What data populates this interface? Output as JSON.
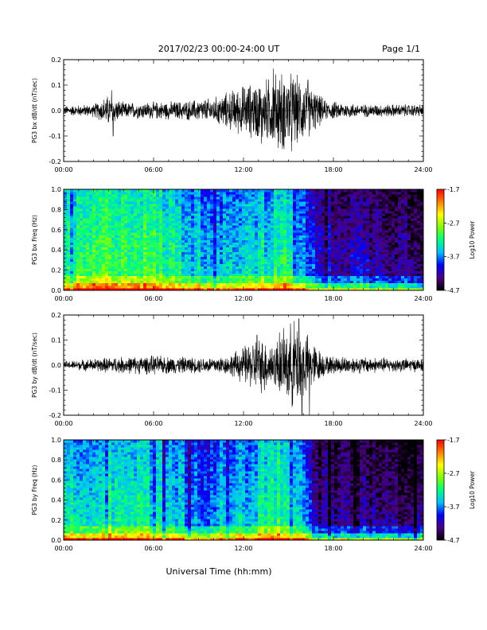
{
  "header": {
    "title": "2017/02/23  00:00-24:00 UT",
    "page": "Page 1/1"
  },
  "footer": {
    "xlabel": "Universal Time (hh:mm)"
  },
  "colorscale": [
    "#000000",
    "#4b0082",
    "#0000ff",
    "#00bfff",
    "#00ff7f",
    "#7fff00",
    "#ffff00",
    "#ff7f00",
    "#ff0000"
  ],
  "chart_data": [
    {
      "type": "line",
      "ylabel": "PG3 bx dB/dt (nT/sec)",
      "x_range": [
        0,
        24
      ],
      "x_ticks": [
        "00:00",
        "06:00",
        "12:00",
        "18:00",
        "24:00"
      ],
      "ylim": [
        -0.2,
        0.2
      ],
      "y_ticks": [
        "0.2",
        "0.1",
        "0.0",
        "-0.1",
        "-0.2"
      ],
      "envelope": [
        {
          "t": 0,
          "amp": 0.015
        },
        {
          "t": 2,
          "amp": 0.02
        },
        {
          "t": 3,
          "amp": 0.05
        },
        {
          "t": 4,
          "amp": 0.025
        },
        {
          "t": 8,
          "amp": 0.03
        },
        {
          "t": 10,
          "amp": 0.04
        },
        {
          "t": 12,
          "amp": 0.08
        },
        {
          "t": 13.5,
          "amp": 0.1
        },
        {
          "t": 14.5,
          "amp": 0.13
        },
        {
          "t": 16,
          "amp": 0.1
        },
        {
          "t": 17.5,
          "amp": 0.03
        },
        {
          "t": 20,
          "amp": 0.02
        },
        {
          "t": 24,
          "amp": 0.02
        }
      ],
      "peaks": [
        {
          "t": 3.2,
          "v": 0.08
        },
        {
          "t": 3.3,
          "v": -0.1
        },
        {
          "t": 14.0,
          "v": 0.165
        },
        {
          "t": 14.6,
          "v": -0.15
        },
        {
          "t": 13.2,
          "v": -0.13
        },
        {
          "t": 16.3,
          "v": 0.12
        },
        {
          "t": 15.2,
          "v": -0.16
        }
      ]
    },
    {
      "type": "heatmap",
      "ylabel": "PG3 bx Freq (Hz)",
      "x_range": [
        0,
        24
      ],
      "x_ticks": [
        "00:00",
        "06:00",
        "12:00",
        "18:00",
        "24:00"
      ],
      "ylim": [
        0,
        1.0
      ],
      "y_ticks": [
        "1.0",
        "0.8",
        "0.6",
        "0.4",
        "0.2",
        "0.0"
      ],
      "colorbar": {
        "label": "Log10 Power",
        "min": -4.7,
        "max": -1.7,
        "ticks": [
          "-1.7",
          "-2.7",
          "-3.7",
          "-4.7"
        ]
      },
      "profile": [
        {
          "t": 0,
          "level": -3.2
        },
        {
          "t": 3,
          "level": -2.9
        },
        {
          "t": 6,
          "level": -3.0
        },
        {
          "t": 9,
          "level": -3.4
        },
        {
          "t": 12,
          "level": -3.3
        },
        {
          "t": 15,
          "level": -3.1
        },
        {
          "t": 17,
          "level": -4.0
        },
        {
          "t": 24,
          "level": -4.2
        }
      ]
    },
    {
      "type": "line",
      "ylabel": "PG3 by dB/dt (nT/sec)",
      "x_range": [
        0,
        24
      ],
      "x_ticks": [
        "00:00",
        "06:00",
        "12:00",
        "18:00",
        "24:00"
      ],
      "ylim": [
        -0.2,
        0.2
      ],
      "y_ticks": [
        "0.2",
        "0.1",
        "0.0",
        "-0.1",
        "-0.2"
      ],
      "envelope": [
        {
          "t": 0,
          "amp": 0.012
        },
        {
          "t": 3,
          "amp": 0.025
        },
        {
          "t": 6,
          "amp": 0.03
        },
        {
          "t": 9,
          "amp": 0.025
        },
        {
          "t": 11,
          "amp": 0.03
        },
        {
          "t": 12,
          "amp": 0.06
        },
        {
          "t": 13,
          "amp": 0.09
        },
        {
          "t": 14,
          "amp": 0.07
        },
        {
          "t": 15.5,
          "amp": 0.15
        },
        {
          "t": 16.5,
          "amp": 0.08
        },
        {
          "t": 17.5,
          "amp": 0.03
        },
        {
          "t": 24,
          "amp": 0.02
        }
      ],
      "peaks": [
        {
          "t": 15.7,
          "v": 0.185
        },
        {
          "t": 15.9,
          "v": -0.2
        },
        {
          "t": 16.4,
          "v": -0.2
        },
        {
          "t": 12.9,
          "v": 0.12
        },
        {
          "t": 13.4,
          "v": -0.1
        },
        {
          "t": 14.4,
          "v": 0.13
        }
      ]
    },
    {
      "type": "heatmap",
      "ylabel": "PG3 by Freq (Hz)",
      "x_range": [
        0,
        24
      ],
      "x_ticks": [
        "00:00",
        "06:00",
        "12:00",
        "18:00",
        "24:00"
      ],
      "ylim": [
        0,
        1.0
      ],
      "y_ticks": [
        "1.0",
        "0.8",
        "0.6",
        "0.4",
        "0.2",
        "0.0"
      ],
      "colorbar": {
        "label": "Log10 Power",
        "min": -4.7,
        "max": -1.7,
        "ticks": [
          "-1.7",
          "-2.7",
          "-3.7",
          "-4.7"
        ]
      },
      "profile": [
        {
          "t": 0,
          "level": -3.4
        },
        {
          "t": 3,
          "level": -3.1
        },
        {
          "t": 6,
          "level": -3.3
        },
        {
          "t": 9,
          "level": -3.6
        },
        {
          "t": 12,
          "level": -3.4
        },
        {
          "t": 15,
          "level": -3.0
        },
        {
          "t": 17,
          "level": -4.2
        },
        {
          "t": 24,
          "level": -4.3
        }
      ]
    }
  ]
}
